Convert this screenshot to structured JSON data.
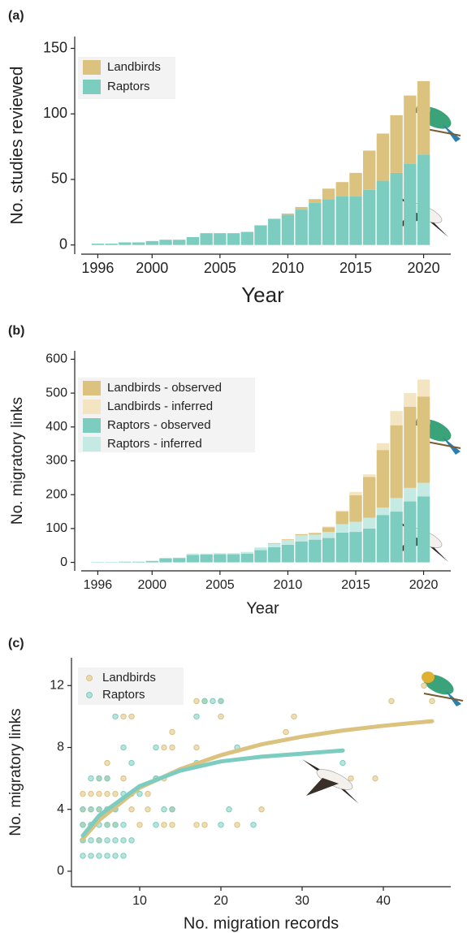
{
  "chart_data": [
    {
      "type": "bar",
      "label": "(a)",
      "xlabel": "Year",
      "ylabel": "No. studies reviewed",
      "stacked": true,
      "x": [
        1996,
        1997,
        1998,
        1999,
        2000,
        2001,
        2002,
        2003,
        2004,
        2005,
        2006,
        2007,
        2008,
        2009,
        2010,
        2011,
        2012,
        2013,
        2014,
        2015,
        2016,
        2017,
        2018,
        2019,
        2020
      ],
      "series": [
        {
          "name": "Landbirds",
          "color": "#dcc27f",
          "values": [
            0,
            0,
            0,
            0,
            0,
            0,
            0,
            0,
            0,
            0,
            0,
            0,
            0,
            0,
            1,
            2,
            3,
            8,
            11,
            18,
            30,
            36,
            44,
            52,
            56
          ]
        },
        {
          "name": "Raptors",
          "color": "#7ccdc0",
          "values": [
            1,
            1,
            2,
            2,
            3,
            4,
            4,
            6,
            9,
            9,
            9,
            10,
            15,
            20,
            23,
            27,
            32,
            35,
            37,
            37,
            42,
            49,
            55,
            62,
            69
          ]
        }
      ],
      "xlim": [
        1994.3,
        2022
      ],
      "xticks": [
        1996,
        2000,
        2005,
        2010,
        2015,
        2020
      ],
      "ylim": [
        -7,
        159
      ],
      "yticks": [
        0,
        50,
        100,
        150
      ],
      "legend": "upper left"
    },
    {
      "type": "bar",
      "label": "(b)",
      "xlabel": "Year",
      "ylabel": "No. migratory links",
      "stacked": true,
      "x": [
        1996,
        1997,
        1998,
        1999,
        2000,
        2001,
        2002,
        2003,
        2004,
        2005,
        2006,
        2007,
        2008,
        2009,
        2010,
        2011,
        2012,
        2013,
        2014,
        2015,
        2016,
        2017,
        2018,
        2019,
        2020
      ],
      "series": [
        {
          "name": "Landbirds - observed",
          "color": "#dcc27f",
          "values": [
            0,
            0,
            0,
            0,
            0,
            0,
            0,
            0,
            0,
            0,
            0,
            0,
            0,
            2,
            2,
            3,
            5,
            14,
            37,
            78,
            120,
            170,
            215,
            240,
            255
          ]
        },
        {
          "name": "Landbirds - inferred",
          "color": "#f3e4c2",
          "values": [
            0,
            0,
            0,
            0,
            0,
            0,
            0,
            0,
            0,
            0,
            0,
            0,
            0,
            0,
            1,
            1,
            1,
            2,
            3,
            10,
            8,
            20,
            42,
            40,
            50
          ]
        },
        {
          "name": "Raptors - observed",
          "color": "#7ccdc0",
          "values": [
            1,
            1,
            2,
            2,
            4,
            12,
            13,
            22,
            23,
            24,
            24,
            26,
            36,
            45,
            52,
            62,
            67,
            72,
            88,
            90,
            100,
            140,
            150,
            180,
            195
          ]
        },
        {
          "name": "Raptors - inferred",
          "color": "#c4eae3",
          "values": [
            0,
            0,
            0,
            0,
            1,
            1,
            1,
            4,
            3,
            3,
            3,
            5,
            8,
            10,
            14,
            18,
            15,
            18,
            25,
            30,
            32,
            22,
            40,
            40,
            40
          ]
        }
      ],
      "xlim": [
        1994.3,
        2022
      ],
      "xticks": [
        1996,
        2000,
        2005,
        2010,
        2015,
        2020
      ],
      "ylim": [
        -25,
        625
      ],
      "yticks": [
        0,
        100,
        200,
        300,
        400,
        500,
        600
      ],
      "legend": "upper left"
    },
    {
      "type": "scatter",
      "label": "(c)",
      "xlabel": "No. migration records",
      "ylabel": "No. migratory links",
      "series": [
        {
          "name": "Landbirds",
          "color": "#dcc27f",
          "x": [
            3,
            3,
            3,
            3,
            4,
            4,
            4,
            5,
            5,
            5,
            5,
            6,
            6,
            6,
            6,
            6,
            7,
            7,
            7,
            8,
            8,
            9,
            9,
            9,
            10,
            11,
            12,
            13,
            13,
            14,
            14,
            14,
            14,
            17,
            17,
            17,
            18,
            18,
            20,
            20,
            22,
            25,
            28,
            29,
            36,
            39,
            41,
            45,
            46,
            13,
            11
          ],
          "values": [
            5,
            4,
            3,
            2,
            5,
            4,
            3,
            6,
            5,
            4,
            2,
            7,
            6,
            5,
            4,
            3,
            4,
            3,
            5,
            10,
            6,
            10,
            5,
            4,
            3,
            4,
            6,
            8,
            3,
            9,
            8,
            4,
            3,
            11,
            8,
            3,
            11,
            3,
            11,
            10,
            3,
            4,
            9,
            10,
            6,
            6,
            11,
            12,
            11,
            6,
            5
          ]
        },
        {
          "name": "Raptors",
          "color": "#7ccdc0",
          "x": [
            3,
            3,
            3,
            3,
            4,
            4,
            4,
            4,
            4,
            5,
            5,
            5,
            5,
            5,
            6,
            6,
            6,
            6,
            6,
            7,
            7,
            7,
            7,
            7,
            8,
            8,
            8,
            8,
            8,
            9,
            9,
            10,
            12,
            12,
            13,
            14,
            17,
            17,
            18,
            19,
            20,
            20,
            21,
            22,
            24,
            35,
            12
          ],
          "values": [
            1,
            2,
            3,
            4,
            1,
            2,
            3,
            4,
            6,
            1,
            2,
            3,
            4,
            6,
            1,
            2,
            3,
            4,
            6,
            1,
            2,
            3,
            4,
            10,
            1,
            2,
            8,
            3,
            5,
            2,
            7,
            5,
            8,
            6,
            4,
            4,
            10,
            7,
            11,
            11,
            11,
            3,
            4,
            8,
            3,
            7,
            3
          ]
        }
      ],
      "fit_lines": [
        {
          "color": "#dcc27f",
          "x": [
            3,
            5,
            10,
            15,
            20,
            25,
            30,
            35,
            40,
            46
          ],
          "values": [
            2.1,
            3.3,
            5.4,
            6.6,
            7.5,
            8.2,
            8.7,
            9.1,
            9.4,
            9.7
          ]
        },
        {
          "color": "#7ccdc0",
          "x": [
            3,
            5,
            10,
            15,
            20,
            25,
            30,
            35
          ],
          "values": [
            2.3,
            3.6,
            5.5,
            6.5,
            7.1,
            7.4,
            7.6,
            7.8
          ]
        }
      ],
      "xlim": [
        1.6,
        48.3
      ],
      "xticks": [
        10,
        20,
        30,
        40
      ],
      "ylim": [
        -1,
        13.8
      ],
      "yticks": [
        0,
        4,
        8,
        12
      ],
      "legend": "upper left"
    }
  ]
}
